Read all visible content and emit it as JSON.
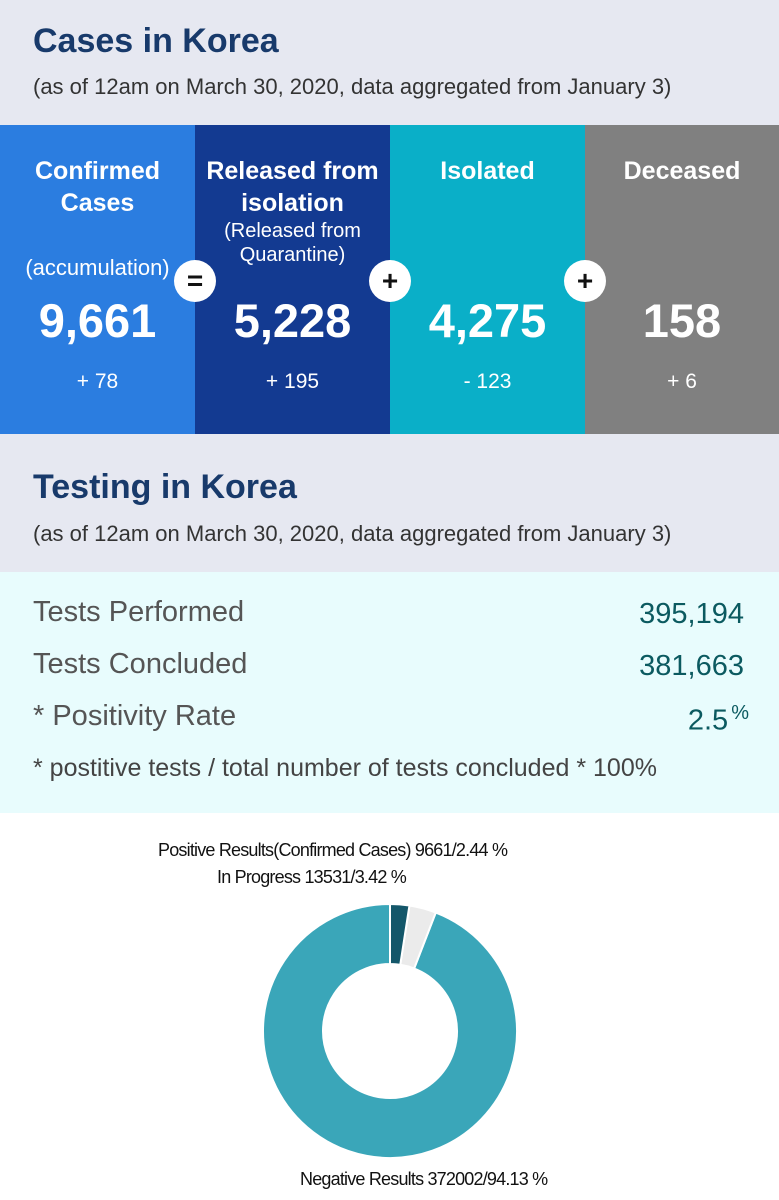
{
  "cases": {
    "title": "Cases in Korea",
    "subtitle": "(as of 12am on March 30, 2020, data aggregated from January 3)",
    "columns": [
      {
        "label_line1": "Confirmed",
        "label_line2": "Cases",
        "sub": "(accumulation)",
        "value": "9,661",
        "change": "+ 78",
        "color": "#2b7de0"
      },
      {
        "label_line1": "Released from",
        "label_line2": "isolation",
        "sub_line1": "(Released from",
        "sub_line2": "Quarantine)",
        "value": "5,228",
        "change": "+ 195",
        "color": "#133a91"
      },
      {
        "label_line1": "Isolated",
        "value": "4,275",
        "change": "- 123",
        "color": "#0aafc8"
      },
      {
        "label_line1": "Deceased",
        "value": "158",
        "change": "+ 6",
        "color": "#808080"
      }
    ],
    "operators": [
      "=",
      "+",
      "+"
    ]
  },
  "testing": {
    "title": "Testing in Korea",
    "subtitle": "(as of 12am on March 30, 2020, data aggregated from January 3)",
    "rows": [
      {
        "label": "Tests Performed",
        "value": "395,194"
      },
      {
        "label": "Tests Concluded",
        "value": "381,663"
      },
      {
        "label": "* Positivity Rate",
        "value": "2.5",
        "unit": "%"
      }
    ],
    "note": "* postitive tests / total number of tests concluded * 100%"
  },
  "chart_data": {
    "type": "pie",
    "donut": true,
    "slices": [
      {
        "label": "Negative Results 372002/94.13 %",
        "value": 372002,
        "percent": 94.13,
        "color": "#3aa6b9"
      },
      {
        "label": "In Progress 13531/3.42 %",
        "value": 13531,
        "percent": 3.42,
        "color": "#ebebeb"
      },
      {
        "label": "Positive Results(Confirmed Cases) 9661/2.44 %",
        "value": 9661,
        "percent": 2.44,
        "color": "#14576a"
      }
    ]
  }
}
